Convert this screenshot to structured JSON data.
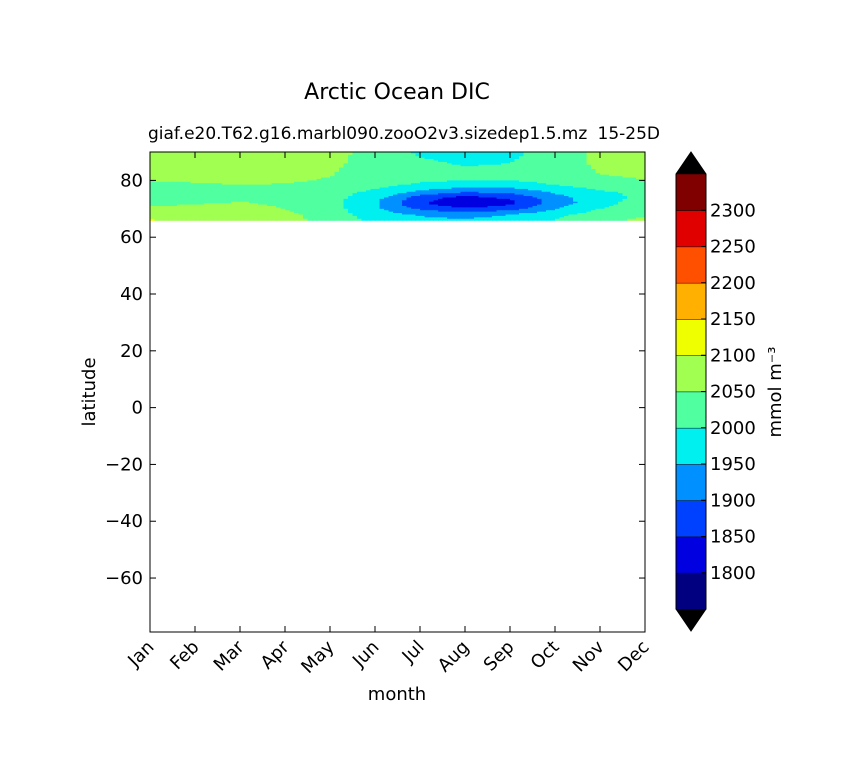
{
  "chart_data": {
    "type": "heatmap",
    "subtype": "filled-contour",
    "title": "Arctic Ocean DIC",
    "subtitle_left": "giaf.e20.T62.g16.marbl090.zooO2v3.sizedep1.5.mz",
    "subtitle_right": "15-25D",
    "xlabel": "month",
    "ylabel": "latitude",
    "x_tick_labels": [
      "Jan",
      "Feb",
      "Mar",
      "Apr",
      "May",
      "Jun",
      "Jul",
      "Aug",
      "Sep",
      "Oct",
      "Nov",
      "Dec"
    ],
    "y_ticks": [
      80,
      60,
      40,
      20,
      0,
      -20,
      -40,
      -60
    ],
    "y_tick_labels": [
      "80",
      "60",
      "40",
      "20",
      "0",
      "−20",
      "−40",
      "−60"
    ],
    "xlim": [
      1,
      12
    ],
    "ylim": [
      -79,
      90
    ],
    "data_lat_range": [
      66,
      90
    ],
    "grid": false,
    "colorbar": {
      "label": "mmol m⁻³",
      "levels": [
        1750,
        1800,
        1850,
        1900,
        1950,
        2000,
        2050,
        2100,
        2150,
        2200,
        2250,
        2300,
        2350
      ],
      "tick_values": [
        1800,
        1850,
        1900,
        1950,
        2000,
        2050,
        2100,
        2150,
        2200,
        2250,
        2300
      ],
      "tick_labels": [
        "1800",
        "1850",
        "1900",
        "1950",
        "2000",
        "2050",
        "2100",
        "2150",
        "2200",
        "2250",
        "2300"
      ],
      "colors": [
        "#000080",
        "#0000e0",
        "#0040ff",
        "#0090ff",
        "#00f0f0",
        "#50ffa0",
        "#a0ff50",
        "#f0ff00",
        "#ffb000",
        "#ff5000",
        "#e00000",
        "#800000"
      ],
      "extend": "both",
      "under_color": "#000000",
      "over_color": "#000000"
    },
    "lat_rows": [
      90,
      86,
      82,
      80,
      78,
      76,
      74,
      72,
      70,
      68,
      66
    ],
    "values": [
      [
        2070,
        2070,
        2070,
        2068,
        2060,
        2040,
        1990,
        1975,
        1985,
        2030,
        2060,
        2070
      ],
      [
        2070,
        2070,
        2070,
        2068,
        2058,
        2035,
        2010,
        1995,
        2000,
        2030,
        2058,
        2068
      ],
      [
        2062,
        2062,
        2062,
        2060,
        2052,
        2030,
        2020,
        2015,
        2015,
        2030,
        2050,
        2058
      ],
      [
        2052,
        2056,
        2058,
        2056,
        2046,
        2025,
        2010,
        2000,
        2000,
        2020,
        2040,
        2048
      ],
      [
        2030,
        2042,
        2048,
        2045,
        2035,
        2012,
        1985,
        1965,
        1965,
        1995,
        2018,
        2028
      ],
      [
        2015,
        2030,
        2040,
        2035,
        2020,
        1990,
        1940,
        1905,
        1915,
        1960,
        1995,
        2010
      ],
      [
        2025,
        2035,
        2045,
        2040,
        2020,
        1970,
        1875,
        1835,
        1860,
        1930,
        1985,
        2010
      ],
      [
        2040,
        2048,
        2052,
        2045,
        2015,
        1955,
        1855,
        1805,
        1835,
        1920,
        1985,
        2020
      ],
      [
        2058,
        2058,
        2058,
        2050,
        2020,
        1960,
        1890,
        1855,
        1880,
        1945,
        2000,
        2030
      ],
      [
        2080,
        2070,
        2070,
        2060,
        2030,
        1970,
        1945,
        1935,
        1950,
        1985,
        2025,
        2045
      ],
      [
        2105,
        2080,
        2075,
        2065,
        2035,
        1985,
        1960,
        1955,
        1965,
        2000,
        2040,
        2060
      ]
    ]
  }
}
